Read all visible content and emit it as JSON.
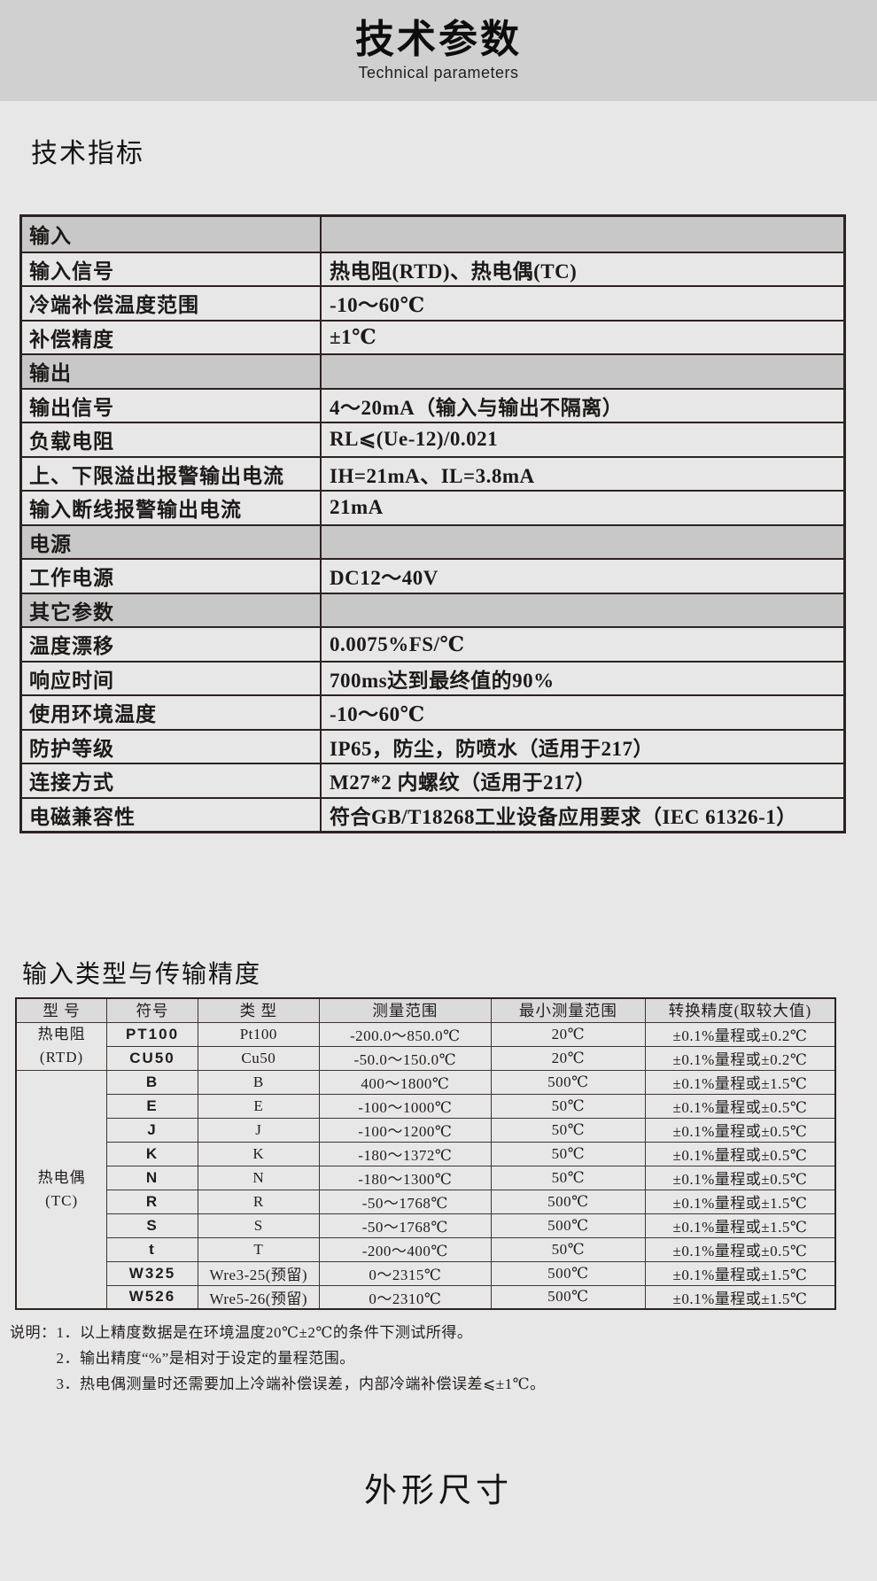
{
  "colors": {
    "page_bg": "#e8e7e7",
    "banner_bg": "#d1d0d1",
    "section_row_bg": "#c9c8c8",
    "table2_header_bg": "#dcdbdc",
    "border_dark": "#2a2322"
  },
  "banner": {
    "title": "技术参数",
    "subtitle": "Technical parameters"
  },
  "sections": {
    "tech_indicators": "技术指标",
    "input_types": "输入类型与传输精度"
  },
  "spec_table": {
    "rows": [
      {
        "type": "section",
        "label": "输入",
        "value": ""
      },
      {
        "type": "item",
        "label": "输入信号",
        "value": "热电阻(RTD)、热电偶(TC)"
      },
      {
        "type": "item",
        "label": "冷端补偿温度范围",
        "value": "-10～60℃"
      },
      {
        "type": "item",
        "label": "补偿精度",
        "value": "±1℃"
      },
      {
        "type": "section",
        "label": "输出",
        "value": ""
      },
      {
        "type": "item",
        "label": "输出信号",
        "value": "4～20mA（输入与输出不隔离）"
      },
      {
        "type": "item",
        "label": "负载电阻",
        "value": "RL⩽(Ue-12)/0.021"
      },
      {
        "type": "item",
        "label": "上、下限溢出报警输出电流",
        "value": "IH=21mA、IL=3.8mA"
      },
      {
        "type": "item",
        "label": "输入断线报警输出电流",
        "value": "21mA"
      },
      {
        "type": "section",
        "label": "电源",
        "value": ""
      },
      {
        "type": "item",
        "label": "工作电源",
        "value": "DC12～40V"
      },
      {
        "type": "section",
        "label": "其它参数",
        "value": ""
      },
      {
        "type": "item",
        "label": "温度漂移",
        "value": "0.0075%FS/℃"
      },
      {
        "type": "item",
        "label": "响应时间",
        "value": "700ms达到最终值的90%"
      },
      {
        "type": "item",
        "label": "使用环境温度",
        "value": "-10～60℃"
      },
      {
        "type": "item",
        "label": "防护等级",
        "value": "IP65，防尘，防喷水（适用于217）"
      },
      {
        "type": "item",
        "label": "连接方式",
        "value": "M27*2 内螺纹（适用于217）"
      },
      {
        "type": "item",
        "label": "电磁兼容性",
        "value": "符合GB/T18268工业设备应用要求（IEC 61326-1）"
      }
    ]
  },
  "accuracy_table": {
    "headers": [
      "型 号",
      "符号",
      "类 型",
      "测量范围",
      "最小测量范围",
      "转换精度(取较大值)"
    ],
    "groups": [
      {
        "label": "热电阻",
        "sublabel": "(RTD)",
        "rows": [
          {
            "symbol": "PT100",
            "kind": "Pt100",
            "range": "-200.0～850.0℃",
            "min_range": "20℃",
            "accuracy": "±0.1%量程或±0.2℃"
          },
          {
            "symbol": "CU50",
            "kind": "Cu50",
            "range": "-50.0～150.0℃",
            "min_range": "20℃",
            "accuracy": "±0.1%量程或±0.2℃"
          }
        ]
      },
      {
        "label": "热电偶",
        "sublabel": "(TC)",
        "rows": [
          {
            "symbol": "B",
            "kind": "B",
            "range": "400～1800℃",
            "min_range": "500℃",
            "accuracy": "±0.1%量程或±1.5℃"
          },
          {
            "symbol": "E",
            "kind": "E",
            "range": "-100～1000℃",
            "min_range": "50℃",
            "accuracy": "±0.1%量程或±0.5℃"
          },
          {
            "symbol": "J",
            "kind": "J",
            "range": "-100～1200℃",
            "min_range": "50℃",
            "accuracy": "±0.1%量程或±0.5℃"
          },
          {
            "symbol": "K",
            "kind": "K",
            "range": "-180～1372℃",
            "min_range": "50℃",
            "accuracy": "±0.1%量程或±0.5℃"
          },
          {
            "symbol": "N",
            "kind": "N",
            "range": "-180～1300℃",
            "min_range": "50℃",
            "accuracy": "±0.1%量程或±0.5℃"
          },
          {
            "symbol": "R",
            "kind": "R",
            "range": "-50～1768℃",
            "min_range": "500℃",
            "accuracy": "±0.1%量程或±1.5℃"
          },
          {
            "symbol": "S",
            "kind": "S",
            "range": "-50～1768℃",
            "min_range": "500℃",
            "accuracy": "±0.1%量程或±1.5℃"
          },
          {
            "symbol": "t",
            "kind": "T",
            "range": "-200～400℃",
            "min_range": "50℃",
            "accuracy": "±0.1%量程或±0.5℃"
          },
          {
            "symbol": "W325",
            "kind": "Wre3-25(预留)",
            "range": "0～2315℃",
            "min_range": "500℃",
            "accuracy": "±0.1%量程或±1.5℃"
          },
          {
            "symbol": "W526",
            "kind": "Wre5-26(预留)",
            "range": "0～2310℃",
            "min_range": "500℃",
            "accuracy": "±0.1%量程或±1.5℃"
          }
        ]
      }
    ]
  },
  "notes": {
    "prefix": "说明：",
    "items": [
      "1．以上精度数据是在环境温度20℃±2℃的条件下测试所得。",
      "2．输出精度“%”是相对于设定的量程范围。",
      "3．热电偶测量时还需要加上冷端补偿误差，内部冷端补偿误差⩽±1℃。"
    ]
  },
  "footer": {
    "heading": "外形尺寸"
  }
}
